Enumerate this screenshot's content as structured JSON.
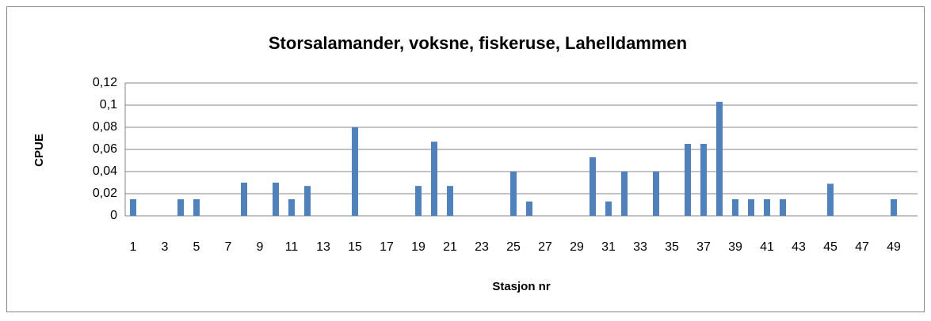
{
  "chart_data": {
    "type": "bar",
    "title": "Storsalamander, voksne, fiskeruse, Lahelldammen",
    "x_label": "Stasjon nr",
    "y_label": "CPUE",
    "color": "#4f81bd",
    "grid": true,
    "categories": [
      "1",
      null,
      "3",
      null,
      "5",
      null,
      "7",
      null,
      "9",
      null,
      "11",
      null,
      "13",
      null,
      "15",
      null,
      "17",
      null,
      "19",
      null,
      "21",
      null,
      "23",
      null,
      "25",
      null,
      "27",
      null,
      "29",
      null,
      "31",
      null,
      "33",
      null,
      "35",
      null,
      "37",
      null,
      "39",
      null,
      "41",
      null,
      "43",
      null,
      "45",
      null,
      "47",
      null,
      "49",
      null
    ],
    "values": [
      0.015,
      0,
      0,
      0.015,
      0.015,
      0,
      0,
      0.03,
      0,
      0.03,
      0.015,
      0.027,
      0,
      0,
      0.08,
      0,
      0,
      0,
      0.027,
      0.067,
      0.027,
      0,
      0,
      0,
      0.04,
      0.013,
      0,
      0,
      0,
      0.053,
      0.013,
      0.04,
      0,
      0.04,
      0,
      0.065,
      0.065,
      0.103,
      0.015,
      0.015,
      0.015,
      0.015,
      0,
      0,
      0.029,
      0,
      0,
      0,
      0.015,
      0
    ],
    "ylim": [
      0,
      0.12
    ],
    "yticks": [
      0,
      {
        "value": 0.02,
        "label": "0,02"
      },
      {
        "value": 0.04,
        "label": "0,04"
      },
      {
        "value": 0.06,
        "label": "0,06"
      },
      {
        "value": 0.08,
        "label": "0,08"
      },
      {
        "value": 0.1,
        "label": "0,1"
      },
      {
        "value": 0.12,
        "label": "0,12"
      }
    ]
  }
}
